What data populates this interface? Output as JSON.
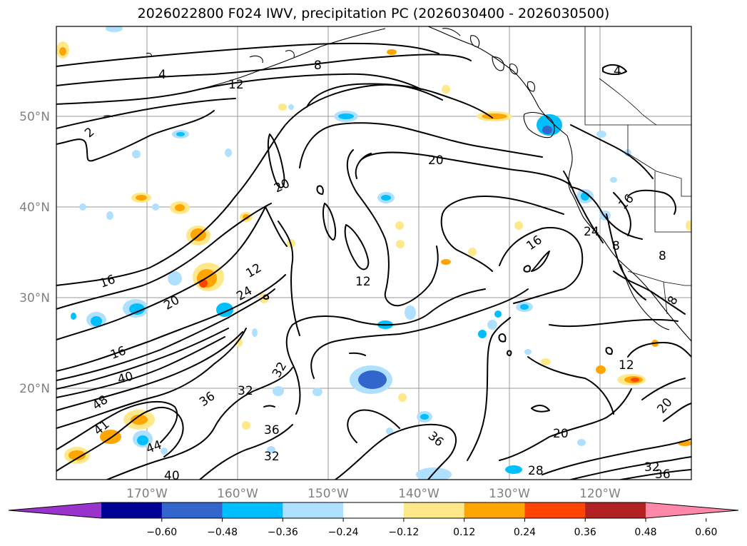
{
  "title": "2026022800 F024 IWV, precipitation PC (2026030400 - 2026030500)",
  "lat_labels": [
    "50°N",
    "40°N",
    "30°N",
    "20°N"
  ],
  "lon_labels": [
    "170°W",
    "160°W",
    "150°W",
    "140°W",
    "130°W",
    "120°W"
  ],
  "colorbar": {
    "colors": [
      "#9933cc",
      "#000099",
      "#3366cc",
      "#00bfff",
      "#b0e0ff",
      "#ffffff",
      "#ffe88a",
      "#ffa500",
      "#ff4500",
      "#b22222",
      "#ff88aa"
    ],
    "tick_labels": [
      "−0.60",
      "−0.48",
      "−0.36",
      "−0.24",
      "−0.12",
      "0.12",
      "0.24",
      "0.36",
      "0.48",
      "0.60"
    ]
  },
  "contour_labels": [
    "4",
    "8",
    "12",
    "2",
    "4",
    "20",
    "20",
    "16",
    "24",
    "16",
    "8",
    "8",
    "16",
    "12",
    "20",
    "12",
    "24",
    "16",
    "40",
    "48",
    "32",
    "36",
    "32",
    "12",
    "20",
    "20",
    "36",
    "40",
    "44",
    "41",
    "32",
    "36",
    "28",
    "32",
    "36",
    "8"
  ]
}
